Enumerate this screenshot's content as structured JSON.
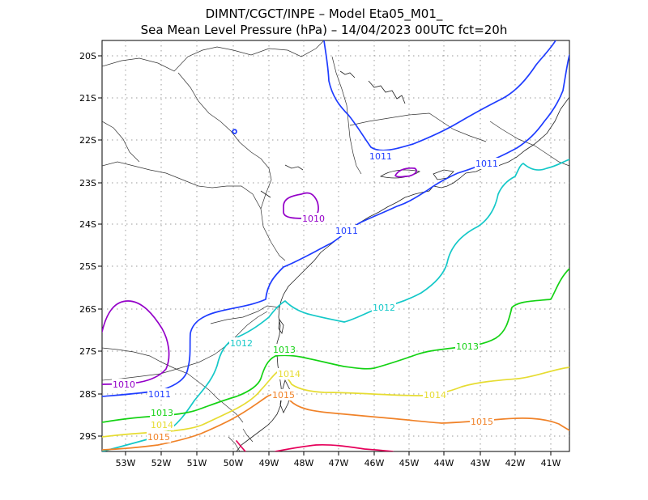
{
  "title": {
    "line1": "DIMNT/CGCT/INPE –  Model Eta05_M01_",
    "line2": "Sea Mean Level Pressure (hPa) – 14/04/2023 00UTC fct=20h"
  },
  "axes": {
    "x_labels": [
      "53W",
      "52W",
      "51W",
      "50W",
      "49W",
      "48W",
      "47W",
      "46W",
      "45W",
      "44W",
      "43W",
      "42W",
      "41W"
    ],
    "y_labels": [
      "20S",
      "21S",
      "22S",
      "23S",
      "24S",
      "25S",
      "26S",
      "27S",
      "28S",
      "29S"
    ]
  },
  "colors": {
    "1010": "#9400c8",
    "1011": "#1e3cff",
    "1012": "#14c8c8",
    "1013": "#14d214",
    "1014": "#e6dc32",
    "1015": "#f08228",
    "1016": "#e6005a"
  },
  "contour_labels": {
    "c1010a": "1010",
    "c1010b": "1010",
    "c1011a": "1011",
    "c1011b": "1011",
    "c1011c": "1011",
    "c1011d": "1011",
    "c1012a": "1012",
    "c1012b": "1012",
    "c1013a": "1013",
    "c1013b": "1013",
    "c1013c": "1013",
    "c1014a": "1014",
    "c1014b": "1014",
    "c1014c": "1014",
    "c1015a": "1015",
    "c1015b": "1015",
    "c1015c": "1015"
  }
}
